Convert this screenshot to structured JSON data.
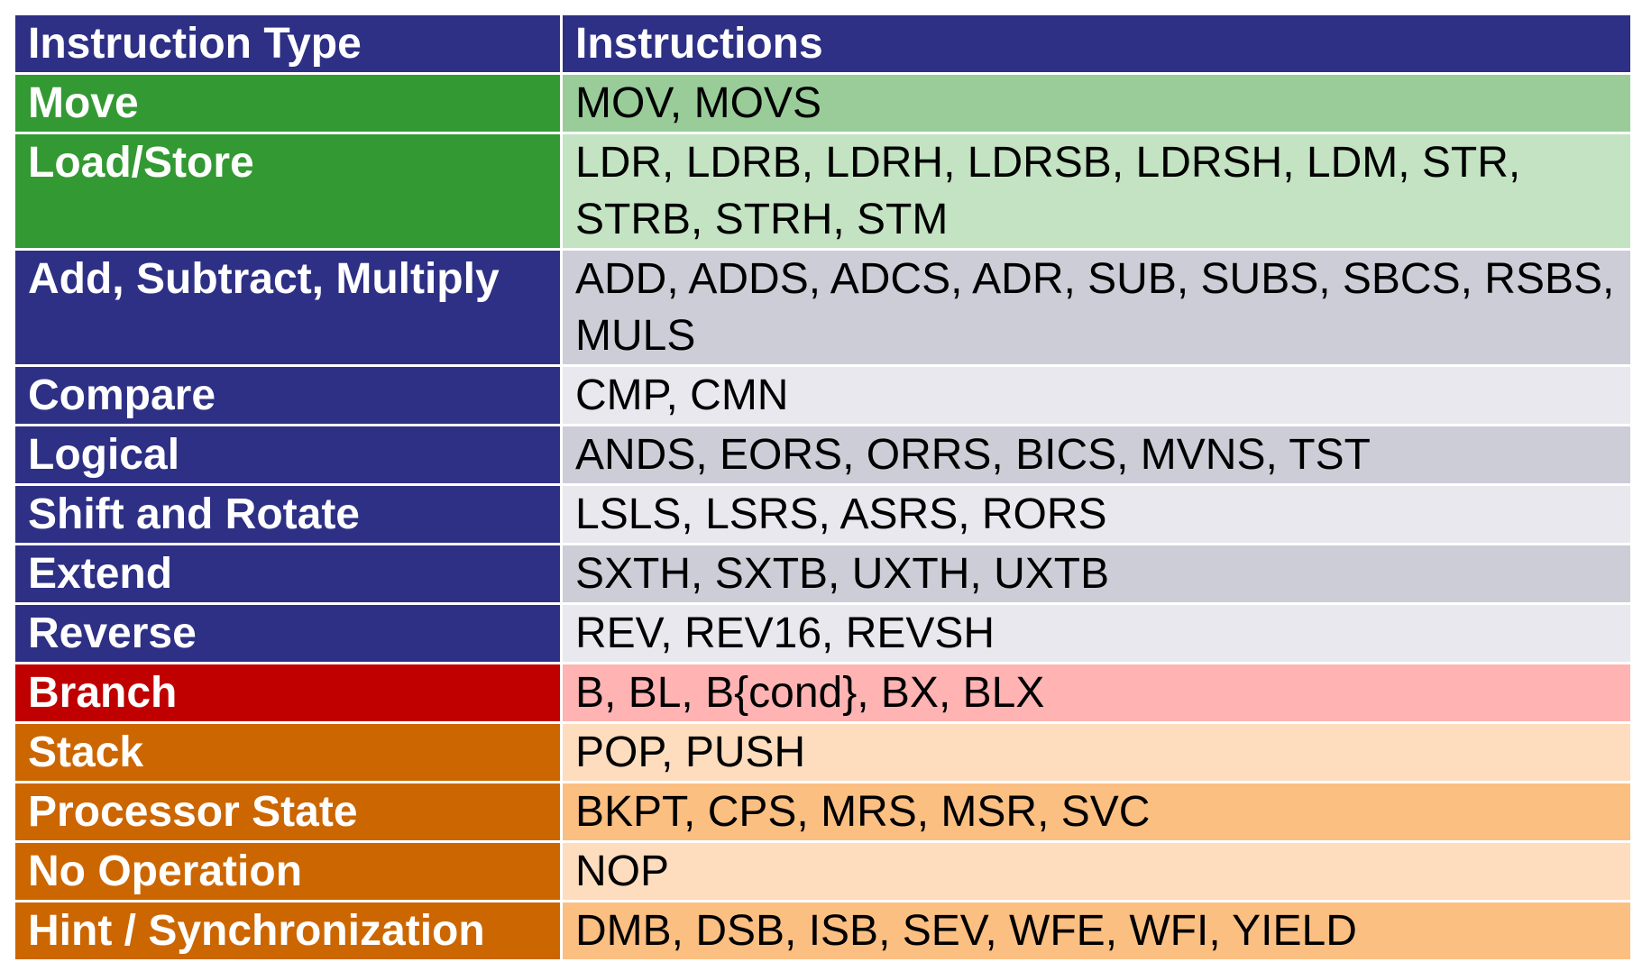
{
  "header": {
    "type": "Instruction Type",
    "instructions": "Instructions"
  },
  "colors": {
    "header": "#2e3085",
    "green_dark": "#339933",
    "green_light": "#99cc99",
    "green_lighter": "#c3e3c3",
    "blue_dark": "#2e3085",
    "gray_dark": "#cdcdd8",
    "gray_light": "#e8e8ee",
    "red": "#c00000",
    "red_light": "#ffb3b3",
    "orange": "#cc6600",
    "orange_light": "#fdddbe",
    "orange_mid": "#fcbf82"
  },
  "rows": [
    {
      "type": "Move",
      "instructions": "MOV, MOVS",
      "type_color": "#339933",
      "instr_color": "#99cc99"
    },
    {
      "type": "Load/Store",
      "instructions": "LDR, LDRB, LDRH, LDRSB, LDRSH, LDM, STR, STRB, STRH, STM",
      "type_color": "#339933",
      "instr_color": "#c3e3c3"
    },
    {
      "type": "Add, Subtract, Multiply",
      "instructions": "ADD, ADDS, ADCS, ADR, SUB, SUBS, SBCS, RSBS, MULS",
      "type_color": "#2e3085",
      "instr_color": "#cdcdd8"
    },
    {
      "type": "Compare",
      "instructions": "CMP, CMN",
      "type_color": "#2e3085",
      "instr_color": "#e8e8ee"
    },
    {
      "type": "Logical",
      "instructions": "ANDS, EORS, ORRS, BICS, MVNS, TST",
      "type_color": "#2e3085",
      "instr_color": "#cdcdd8"
    },
    {
      "type": "Shift and Rotate",
      "instructions": "LSLS, LSRS, ASRS, RORS",
      "type_color": "#2e3085",
      "instr_color": "#e8e8ee"
    },
    {
      "type": "Extend",
      "instructions": "SXTH, SXTB, UXTH, UXTB",
      "type_color": "#2e3085",
      "instr_color": "#cdcdd8"
    },
    {
      "type": "Reverse",
      "instructions": "REV, REV16, REVSH",
      "type_color": "#2e3085",
      "instr_color": "#e8e8ee"
    },
    {
      "type": "Branch",
      "instructions": "B, BL, B{cond}, BX, BLX",
      "type_color": "#c00000",
      "instr_color": "#ffb3b3"
    },
    {
      "type": "Stack",
      "instructions": "POP, PUSH",
      "type_color": "#cc6600",
      "instr_color": "#fdddbe"
    },
    {
      "type": "Processor State",
      "instructions": "BKPT, CPS, MRS, MSR, SVC",
      "type_color": "#cc6600",
      "instr_color": "#fcbf82"
    },
    {
      "type": "No Operation",
      "instructions": "NOP",
      "type_color": "#cc6600",
      "instr_color": "#fdddbe"
    },
    {
      "type": "Hint / Synchronization",
      "instructions": "DMB, DSB, ISB, SEV, WFE, WFI, YIELD",
      "type_color": "#cc6600",
      "instr_color": "#fcbf82"
    }
  ]
}
